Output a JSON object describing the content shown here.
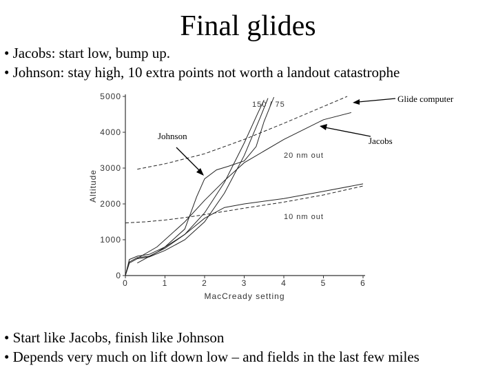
{
  "slide": {
    "title": "Final glides",
    "top_bullets": [
      "• Jacobs: start low, bump up.",
      "• Johnson: stay high, 10 extra points not worth a landout catastrophe"
    ],
    "bottom_bullets": [
      "• Start like Jacobs, finish like Johnson",
      "• Depends very much on lift down low – and fields in the last few miles"
    ]
  },
  "colors": {
    "text": "#000000",
    "axis": "#333333",
    "curve": "#222222"
  },
  "chart_data": {
    "type": "line",
    "title": "",
    "xlabel": "MacCready setting",
    "ylabel": "Altitude",
    "xlim": [
      0,
      6
    ],
    "ylim": [
      0,
      5000
    ],
    "x_ticks": [
      0,
      1,
      2,
      3,
      4,
      5,
      6
    ],
    "y_ticks": [
      0,
      1000,
      2000,
      3000,
      4000,
      5000
    ],
    "x_tick_labels": [
      "0",
      "1",
      "2",
      "3",
      "4",
      "5",
      "6"
    ],
    "y_tick_labels": [
      "0",
      "1000",
      "2000",
      "3000",
      "4000",
      "5000"
    ],
    "grid": false,
    "legend": "none",
    "curve_labels": [
      "150 / 75",
      "20 nm out",
      "10 nm out"
    ],
    "annotations": [
      "Glide computer",
      "Johnson",
      "Jacobs"
    ],
    "series": [
      {
        "style": "dashed",
        "x": [
          0.3,
          1,
          2,
          3,
          4,
          5,
          5.6
        ],
        "values": [
          2970,
          3120,
          3400,
          3800,
          4250,
          4720,
          5000
        ]
      },
      {
        "style": "solid",
        "x": [
          0,
          0.1,
          0.3,
          0.6,
          1,
          1.5,
          2,
          2.5,
          3,
          3.4,
          3.6
        ],
        "values": [
          0,
          350,
          470,
          520,
          700,
          1000,
          1500,
          2300,
          3350,
          4400,
          4950
        ]
      },
      {
        "style": "solid",
        "x": [
          0,
          0.1,
          0.3,
          0.6,
          1,
          1.5,
          2,
          2.5,
          3,
          3.35,
          3.5
        ],
        "values": [
          0,
          380,
          500,
          540,
          760,
          1150,
          1750,
          2600,
          3700,
          4550,
          4900
        ]
      },
      {
        "style": "solid",
        "x": [
          0,
          0.1,
          0.3,
          0.6,
          1,
          1.5,
          1.8,
          2,
          2.3,
          2.6,
          3,
          3.3,
          3.5,
          3.75
        ],
        "values": [
          0,
          450,
          540,
          590,
          800,
          1300,
          2200,
          2700,
          2950,
          3050,
          3200,
          3600,
          4300,
          4980
        ]
      },
      {
        "style": "solid",
        "x": [
          0.3,
          0.8,
          1.5,
          2,
          2.5,
          3,
          4,
          5,
          5.7
        ],
        "values": [
          480,
          800,
          1500,
          2100,
          2650,
          3150,
          3800,
          4350,
          4550
        ]
      },
      {
        "style": "dashed",
        "x": [
          0,
          0.5,
          1,
          1.5,
          2,
          3,
          4,
          5,
          6
        ],
        "values": [
          1470,
          1500,
          1550,
          1620,
          1700,
          1880,
          2050,
          2250,
          2500
        ]
      },
      {
        "style": "solid",
        "x": [
          0.3,
          0.8,
          1.5,
          2,
          2.5,
          3,
          4,
          5,
          6
        ],
        "values": [
          350,
          650,
          1150,
          1600,
          1900,
          2000,
          2150,
          2350,
          2560
        ]
      }
    ]
  }
}
